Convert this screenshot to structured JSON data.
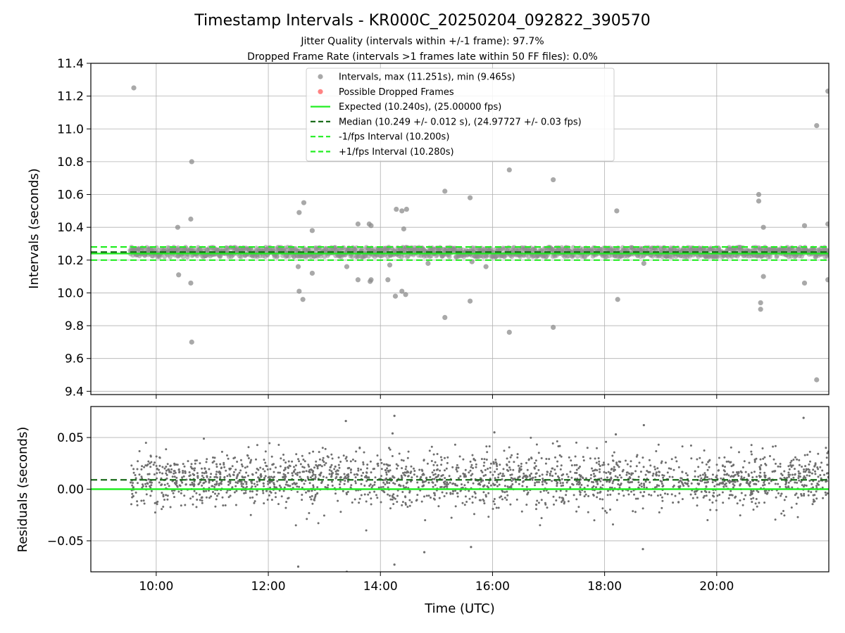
{
  "title": "Timestamp Intervals - KR000C_20250204_092822_390570",
  "subtitle_lines": [
    "Jitter Quality (intervals within +/-1 frame): 97.7%",
    "Dropped Frame Rate (intervals >1 frames late within 50 FF files): 0.0%"
  ],
  "colors": {
    "points": "#8c8c8c",
    "residual_points": "#6e6e6e",
    "dropped": "#ff5a5a",
    "expected": "#22ee22",
    "median": "#1a6b1a",
    "band": "#22ee22",
    "grid": "#b0b0b0"
  },
  "chart_data": [
    {
      "type": "scatter",
      "panel": "intervals",
      "ylabel": "Intervals (seconds)",
      "xlim": [
        "08:50",
        "22:00"
      ],
      "ylim": [
        9.38,
        11.4
      ],
      "yticks": [
        9.4,
        9.6,
        9.8,
        10.0,
        10.2,
        10.4,
        10.6,
        10.8,
        11.0,
        11.2,
        11.4
      ],
      "ytick_labels": [
        "9.4",
        "9.6",
        "9.8",
        "10.0",
        "10.2",
        "10.4",
        "10.6",
        "10.8",
        "11.0",
        "11.2",
        "11.4"
      ],
      "grid": true,
      "legend_position": "upper-center",
      "legend": [
        {
          "label": "Intervals, max (11.251s), min (9.465s)",
          "marker": "circle",
          "color": "#8c8c8c"
        },
        {
          "label": "Possible Dropped Frames",
          "marker": "circle",
          "color": "#ff5a5a"
        },
        {
          "label": "Expected (10.240s), (25.00000 fps)",
          "line": "solid",
          "color": "#22ee22"
        },
        {
          "label": "Median (10.249 +/- 0.012 s), (24.97727 +/- 0.03 fps)",
          "line": "dashed",
          "color": "#1a6b1a"
        },
        {
          "label": "-1/fps Interval (10.200s)",
          "line": "dashed",
          "color": "#22ee22"
        },
        {
          "label": "+1/fps Interval (10.280s)",
          "line": "dashed",
          "color": "#22ee22"
        }
      ],
      "lines": {
        "expected": 10.24,
        "median": 10.249,
        "lower": 10.2,
        "upper": 10.28
      },
      "dense_band": {
        "x_start": "09:32",
        "x_end": "22:00",
        "y_center": 10.249,
        "y_spread": 0.03
      },
      "outliers": [
        {
          "x": "09:36",
          "y": 11.25
        },
        {
          "x": "10:23",
          "y": 10.4
        },
        {
          "x": "10:24",
          "y": 10.11
        },
        {
          "x": "10:38",
          "y": 10.8
        },
        {
          "x": "10:37",
          "y": 10.45
        },
        {
          "x": "10:37",
          "y": 10.06
        },
        {
          "x": "10:38",
          "y": 9.7
        },
        {
          "x": "12:33",
          "y": 10.49
        },
        {
          "x": "12:38",
          "y": 10.55
        },
        {
          "x": "12:32",
          "y": 10.16
        },
        {
          "x": "12:33",
          "y": 10.01
        },
        {
          "x": "12:37",
          "y": 9.96
        },
        {
          "x": "12:47",
          "y": 10.38
        },
        {
          "x": "12:47",
          "y": 10.12
        },
        {
          "x": "13:24",
          "y": 10.16
        },
        {
          "x": "13:36",
          "y": 10.42
        },
        {
          "x": "13:36",
          "y": 10.08
        },
        {
          "x": "13:48",
          "y": 10.42
        },
        {
          "x": "13:50",
          "y": 10.41
        },
        {
          "x": "13:50",
          "y": 10.08
        },
        {
          "x": "13:49",
          "y": 10.07
        },
        {
          "x": "14:10",
          "y": 10.17
        },
        {
          "x": "14:17",
          "y": 10.51
        },
        {
          "x": "14:16",
          "y": 9.98
        },
        {
          "x": "14:23",
          "y": 10.5
        },
        {
          "x": "14:25",
          "y": 10.39
        },
        {
          "x": "14:28",
          "y": 10.51
        },
        {
          "x": "14:23",
          "y": 10.01
        },
        {
          "x": "14:27",
          "y": 9.99
        },
        {
          "x": "14:08",
          "y": 10.08
        },
        {
          "x": "14:51",
          "y": 10.18
        },
        {
          "x": "15:09",
          "y": 10.62
        },
        {
          "x": "15:09",
          "y": 9.85
        },
        {
          "x": "15:36",
          "y": 10.58
        },
        {
          "x": "15:36",
          "y": 9.95
        },
        {
          "x": "15:38",
          "y": 10.19
        },
        {
          "x": "15:53",
          "y": 10.16
        },
        {
          "x": "16:18",
          "y": 10.75
        },
        {
          "x": "16:18",
          "y": 9.76
        },
        {
          "x": "17:05",
          "y": 10.69
        },
        {
          "x": "17:05",
          "y": 9.79
        },
        {
          "x": "18:13",
          "y": 10.5
        },
        {
          "x": "18:14",
          "y": 9.96
        },
        {
          "x": "18:42",
          "y": 10.18
        },
        {
          "x": "20:45",
          "y": 10.6
        },
        {
          "x": "20:45",
          "y": 10.56
        },
        {
          "x": "20:50",
          "y": 10.4
        },
        {
          "x": "20:50",
          "y": 10.1
        },
        {
          "x": "20:47",
          "y": 9.94
        },
        {
          "x": "20:47",
          "y": 9.9
        },
        {
          "x": "21:34",
          "y": 10.41
        },
        {
          "x": "21:34",
          "y": 10.06
        },
        {
          "x": "21:47",
          "y": 11.02
        },
        {
          "x": "21:47",
          "y": 9.47
        },
        {
          "x": "21:59",
          "y": 11.23
        },
        {
          "x": "21:59",
          "y": 10.42
        },
        {
          "x": "21:59",
          "y": 10.08
        }
      ]
    },
    {
      "type": "scatter",
      "panel": "residuals",
      "xlabel": "Time (UTC)",
      "ylabel": "Residuals (seconds)",
      "xlim": [
        "08:50",
        "22:00"
      ],
      "xticks": [
        "10:00",
        "12:00",
        "14:00",
        "16:00",
        "18:00",
        "20:00"
      ],
      "ylim": [
        -0.08,
        0.08
      ],
      "yticks": [
        -0.05,
        0.0,
        0.05
      ],
      "ytick_labels": [
        "−0.05",
        "0.00",
        "0.05"
      ],
      "grid": true,
      "lines": {
        "zero": 0.0,
        "median_offset": 0.009
      },
      "scatter_cloud": {
        "x_start": "09:32",
        "x_end": "22:00",
        "center": 0.009,
        "sd": 0.013,
        "count": 2200
      },
      "outliers": [
        {
          "x": "13:23",
          "y": 0.066
        },
        {
          "x": "14:13",
          "y": 0.054
        },
        {
          "x": "14:15",
          "y": 0.071
        },
        {
          "x": "16:02",
          "y": 0.055
        },
        {
          "x": "18:12",
          "y": 0.053
        },
        {
          "x": "18:42",
          "y": 0.062
        },
        {
          "x": "21:33",
          "y": 0.069
        },
        {
          "x": "12:32",
          "y": -0.075
        },
        {
          "x": "13:24",
          "y": -0.08
        },
        {
          "x": "14:15",
          "y": -0.073
        },
        {
          "x": "14:47",
          "y": -0.061
        },
        {
          "x": "15:37",
          "y": -0.056
        },
        {
          "x": "18:41",
          "y": -0.058
        }
      ]
    }
  ]
}
